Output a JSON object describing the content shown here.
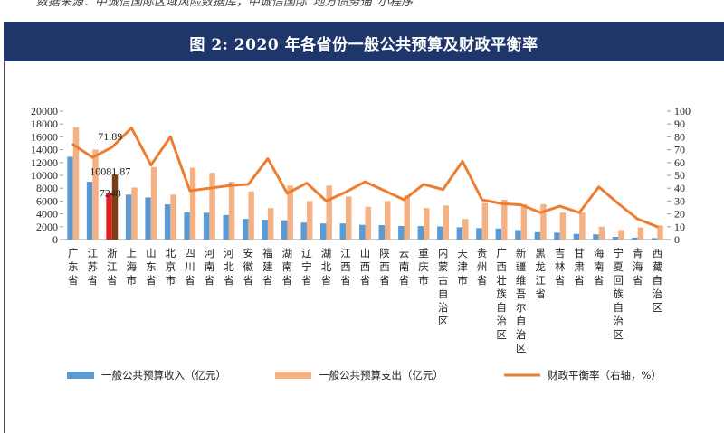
{
  "source": "数据来源：中诚信国际区域风险数据库，中诚信国际“地方债务通”小程序",
  "title": "图 2:   2020 年各省份一般公共预算及财政平衡率",
  "colors": {
    "banner": "#1e3669",
    "revenue": "#5b9bd5",
    "expenditure": "#f4b183",
    "ratio": "#ed7d31",
    "highlight_revenue": "#e02020",
    "highlight_expenditure": "#7b3f12"
  },
  "chart_data": {
    "type": "bar",
    "title": "",
    "xlabel": "",
    "ylabel": "",
    "ylim": [
      0,
      20000
    ],
    "y_ticks": [
      0,
      2000,
      4000,
      6000,
      8000,
      10000,
      12000,
      14000,
      16000,
      18000,
      20000
    ],
    "y2lim": [
      0,
      100
    ],
    "y2_ticks": [
      0,
      10,
      20,
      30,
      40,
      50,
      60,
      70,
      80,
      90,
      100
    ],
    "categories": [
      "广东省",
      "江苏省",
      "浙江省",
      "上海市",
      "山东省",
      "北京市",
      "四川省",
      "河南省",
      "河北省",
      "安徽省",
      "福建省",
      "湖南省",
      "辽宁省",
      "湖北省",
      "江西省",
      "山西省",
      "陕西省",
      "云南省",
      "重庆市",
      "内蒙古自治区",
      "天津市",
      "贵州省",
      "广西壮族自治区",
      "新疆维吾尔自治区",
      "黑龙江省",
      "吉林省",
      "甘肃省",
      "海南省",
      "宁夏回族自治区",
      "青海省",
      "西藏自治区"
    ],
    "series": [
      {
        "name": "一般公共预算收入（亿元）",
        "type": "bar",
        "axis": "left",
        "values": [
          12900,
          9000,
          7248,
          7000,
          6560,
          5480,
          4260,
          4170,
          3830,
          3220,
          3080,
          3010,
          2650,
          2510,
          2510,
          2300,
          2250,
          2120,
          2100,
          2050,
          1920,
          1790,
          1720,
          1480,
          1150,
          1080,
          880,
          820,
          420,
          300,
          220
        ]
      },
      {
        "name": "一般公共预算支出（亿元）",
        "type": "bar",
        "axis": "left",
        "values": [
          17500,
          14000,
          10081.87,
          8100,
          11300,
          7000,
          11200,
          10400,
          9000,
          7500,
          4900,
          8400,
          6000,
          8400,
          6700,
          5100,
          6000,
          6900,
          4900,
          5300,
          3200,
          5700,
          6200,
          5500,
          5500,
          4200,
          4200,
          2000,
          1500,
          1900,
          2200
        ]
      },
      {
        "name": "财政平衡率（右轴，%）",
        "type": "line",
        "axis": "right",
        "values": [
          74,
          64,
          71.89,
          87,
          58,
          80,
          38,
          40,
          42,
          43,
          63,
          36,
          44,
          30,
          37,
          45,
          38,
          31,
          43,
          39,
          61,
          31,
          28,
          27,
          21,
          26,
          21,
          41,
          28,
          16,
          10
        ]
      }
    ],
    "annotations": [
      {
        "category": "浙江省",
        "series": "财政平衡率（右轴，%）",
        "label": "71.89"
      },
      {
        "category": "浙江省",
        "series": "一般公共预算支出（亿元）",
        "label": "10081.87"
      },
      {
        "category": "浙江省",
        "series": "一般公共预算收入（亿元）",
        "label": "7248"
      }
    ],
    "highlight_category": "浙江省",
    "legend_position": "bottom",
    "grid": false
  }
}
